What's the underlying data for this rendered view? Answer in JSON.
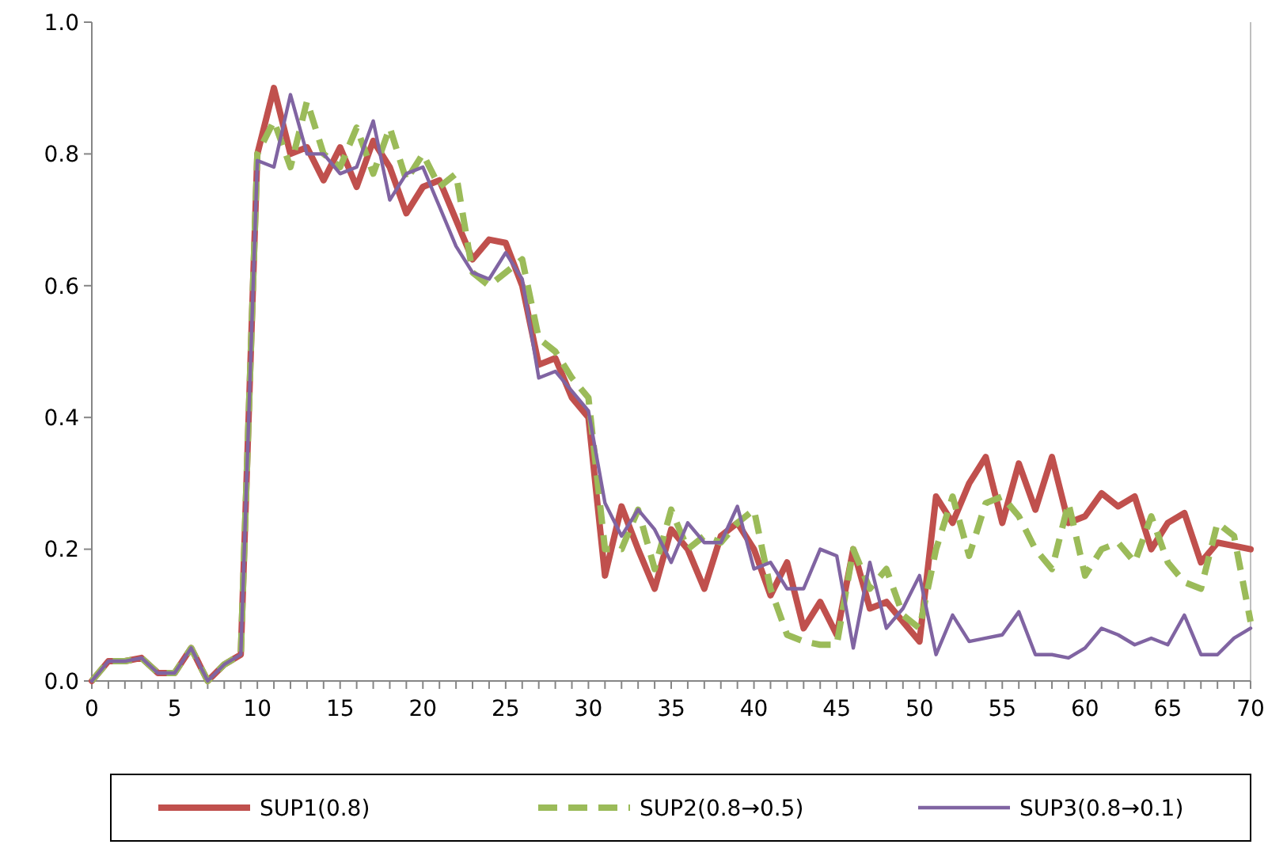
{
  "chart_data": {
    "type": "line",
    "x": [
      0,
      1,
      2,
      3,
      4,
      5,
      6,
      7,
      8,
      9,
      10,
      11,
      12,
      13,
      14,
      15,
      16,
      17,
      18,
      19,
      20,
      21,
      22,
      23,
      24,
      25,
      26,
      27,
      28,
      29,
      30,
      31,
      32,
      33,
      34,
      35,
      36,
      37,
      38,
      39,
      40,
      41,
      42,
      43,
      44,
      45,
      46,
      47,
      48,
      49,
      50,
      51,
      52,
      53,
      54,
      55,
      56,
      57,
      58,
      59,
      60,
      61,
      62,
      63,
      64,
      65,
      66,
      67,
      68,
      69,
      70
    ],
    "xlim": [
      0,
      70
    ],
    "xticks": [
      0,
      {
        "value": 1,
        "label": null
      },
      {
        "value": 2,
        "label": null
      },
      {
        "value": 3,
        "label": null
      },
      {
        "value": 4,
        "label": null
      },
      5,
      {
        "value": 6,
        "label": null
      },
      {
        "value": 7,
        "label": null
      },
      {
        "value": 8,
        "label": null
      },
      {
        "value": 9,
        "label": null
      },
      10,
      {
        "value": 11,
        "label": null
      },
      {
        "value": 12,
        "label": null
      },
      {
        "value": 13,
        "label": null
      },
      {
        "value": 14,
        "label": null
      },
      15,
      {
        "value": 16,
        "label": null
      },
      {
        "value": 17,
        "label": null
      },
      {
        "value": 18,
        "label": null
      },
      {
        "value": 19,
        "label": null
      },
      20,
      {
        "value": 21,
        "label": null
      },
      {
        "value": 22,
        "label": null
      },
      {
        "value": 23,
        "label": null
      },
      {
        "value": 24,
        "label": null
      },
      25,
      {
        "value": 26,
        "label": null
      },
      {
        "value": 27,
        "label": null
      },
      {
        "value": 28,
        "label": null
      },
      {
        "value": 29,
        "label": null
      },
      30,
      {
        "value": 31,
        "label": null
      },
      {
        "value": 32,
        "label": null
      },
      {
        "value": 33,
        "label": null
      },
      {
        "value": 34,
        "label": null
      },
      35,
      {
        "value": 36,
        "label": null
      },
      {
        "value": 37,
        "label": null
      },
      {
        "value": 38,
        "label": null
      },
      {
        "value": 39,
        "label": null
      },
      40,
      {
        "value": 41,
        "label": null
      },
      {
        "value": 42,
        "label": null
      },
      {
        "value": 43,
        "label": null
      },
      {
        "value": 44,
        "label": null
      },
      45,
      {
        "value": 46,
        "label": null
      },
      {
        "value": 47,
        "label": null
      },
      {
        "value": 48,
        "label": null
      },
      {
        "value": 49,
        "label": null
      },
      50,
      {
        "value": 51,
        "label": null
      },
      {
        "value": 52,
        "label": null
      },
      {
        "value": 53,
        "label": null
      },
      {
        "value": 54,
        "label": null
      },
      55,
      {
        "value": 56,
        "label": null
      },
      {
        "value": 57,
        "label": null
      },
      {
        "value": 58,
        "label": null
      },
      {
        "value": 59,
        "label": null
      },
      60,
      {
        "value": 61,
        "label": null
      },
      {
        "value": 62,
        "label": null
      },
      {
        "value": 63,
        "label": null
      },
      {
        "value": 64,
        "label": null
      },
      65,
      {
        "value": 66,
        "label": null
      },
      {
        "value": 67,
        "label": null
      },
      {
        "value": 68,
        "label": null
      },
      {
        "value": 69,
        "label": null
      },
      70
    ],
    "ylim": [
      0,
      1
    ],
    "yticks": [
      {
        "value": 0,
        "label": "0.0"
      },
      {
        "value": 0.2,
        "label": "0.2"
      },
      {
        "value": 0.4,
        "label": "0.4"
      },
      {
        "value": 0.6,
        "label": "0.6"
      },
      {
        "value": 0.8,
        "label": "0.8"
      },
      {
        "value": 1,
        "label": "1.0"
      }
    ],
    "grid": false,
    "legend": "bottom",
    "marker": "none",
    "series": [
      {
        "name": "SUP1(0.8)",
        "color": "#c0504d",
        "line_style": "solid",
        "values": [
          0,
          0.03,
          0.03,
          0.035,
          0.012,
          0.012,
          0.05,
          0,
          0.025,
          0.04,
          0.8,
          0.9,
          0.8,
          0.81,
          0.76,
          0.81,
          0.75,
          0.82,
          0.78,
          0.71,
          0.75,
          0.76,
          0.7,
          0.64,
          0.67,
          0.665,
          0.6,
          0.48,
          0.49,
          0.43,
          0.4,
          0.16,
          0.265,
          0.2,
          0.14,
          0.23,
          0.2,
          0.14,
          0.22,
          0.24,
          0.2,
          0.13,
          0.18,
          0.08,
          0.12,
          0.07,
          0.2,
          0.11,
          0.12,
          0.09,
          0.06,
          0.28,
          0.24,
          0.3,
          0.34,
          0.24,
          0.33,
          0.26,
          0.34,
          0.24,
          0.25,
          0.285,
          0.265,
          0.28,
          0.2,
          0.24,
          0.255,
          0.18,
          0.21,
          0.205,
          0.2
        ]
      },
      {
        "name": "SUP2(0.8→0.5)",
        "color": "#9bbb59",
        "line_style": "dashed",
        "values": [
          0,
          0.03,
          0.03,
          0.035,
          0.012,
          0.012,
          0.05,
          0,
          0.025,
          0.04,
          0.8,
          0.85,
          0.78,
          0.88,
          0.8,
          0.78,
          0.84,
          0.77,
          0.84,
          0.76,
          0.8,
          0.75,
          0.77,
          0.62,
          0.6,
          0.62,
          0.64,
          0.52,
          0.5,
          0.46,
          0.43,
          0.2,
          0.2,
          0.26,
          0.17,
          0.26,
          0.2,
          0.22,
          0.21,
          0.24,
          0.26,
          0.14,
          0.07,
          0.06,
          0.055,
          0.055,
          0.2,
          0.14,
          0.17,
          0.1,
          0.08,
          0.2,
          0.28,
          0.19,
          0.27,
          0.28,
          0.25,
          0.2,
          0.17,
          0.27,
          0.16,
          0.2,
          0.21,
          0.18,
          0.25,
          0.18,
          0.15,
          0.14,
          0.24,
          0.22,
          0.09
        ]
      },
      {
        "name": "SUP3(0.8→0.1)",
        "color": "#8064a2",
        "line_style": "solid",
        "values": [
          0,
          0.03,
          0.03,
          0.035,
          0.012,
          0.012,
          0.05,
          0,
          0.025,
          0.04,
          0.79,
          0.78,
          0.89,
          0.8,
          0.8,
          0.77,
          0.78,
          0.85,
          0.73,
          0.77,
          0.78,
          0.72,
          0.66,
          0.62,
          0.61,
          0.65,
          0.61,
          0.46,
          0.47,
          0.44,
          0.41,
          0.27,
          0.22,
          0.26,
          0.23,
          0.18,
          0.24,
          0.21,
          0.21,
          0.265,
          0.17,
          0.18,
          0.14,
          0.14,
          0.2,
          0.19,
          0.05,
          0.18,
          0.08,
          0.11,
          0.16,
          0.04,
          0.1,
          0.06,
          0.065,
          0.07,
          0.105,
          0.04,
          0.04,
          0.035,
          0.05,
          0.08,
          0.07,
          0.055,
          0.065,
          0.055,
          0.1,
          0.04,
          0.04,
          0.065,
          0.08
        ]
      }
    ]
  }
}
